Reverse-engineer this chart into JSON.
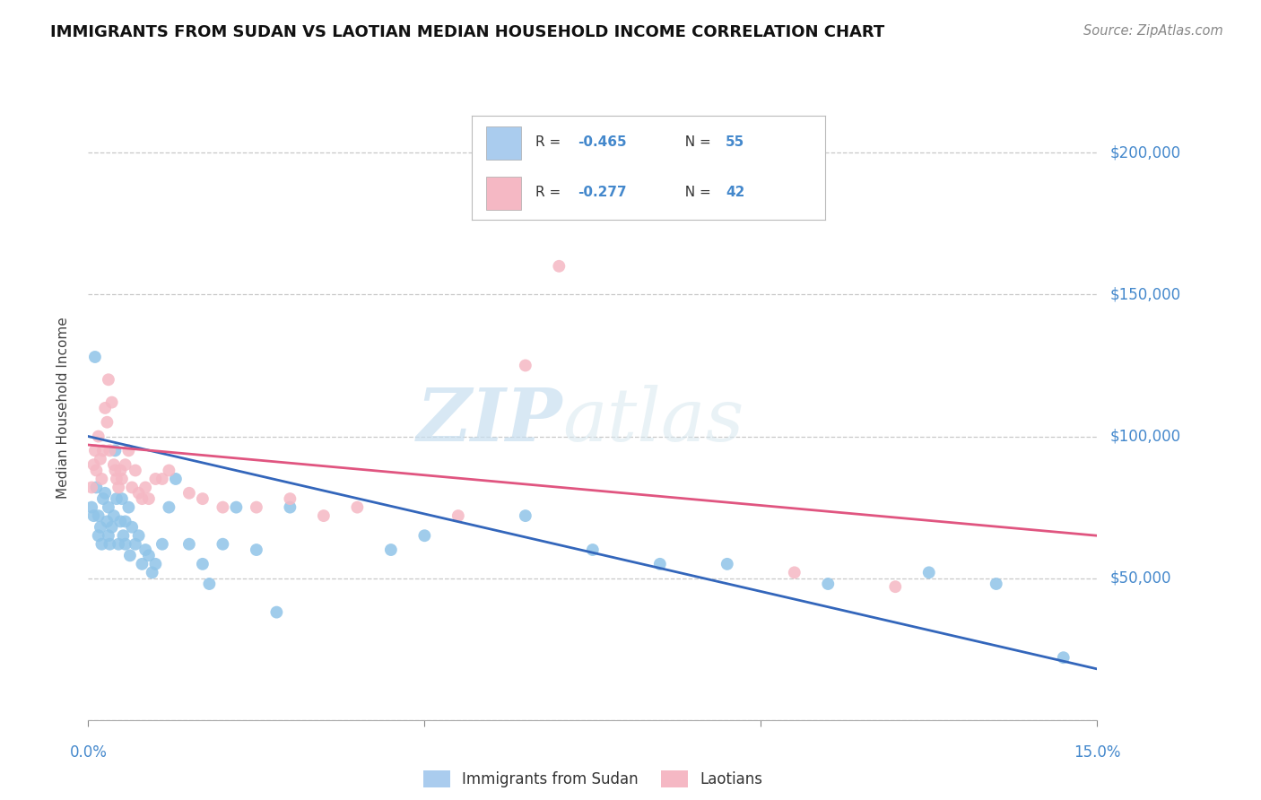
{
  "title": "IMMIGRANTS FROM SUDAN VS LAOTIAN MEDIAN HOUSEHOLD INCOME CORRELATION CHART",
  "source": "Source: ZipAtlas.com",
  "ylabel": "Median Household Income",
  "xlim": [
    0.0,
    15.0
  ],
  "ylim": [
    0,
    220000
  ],
  "yticks": [
    0,
    50000,
    100000,
    150000,
    200000
  ],
  "ytick_labels": [
    "",
    "$50,000",
    "$100,000",
    "$150,000",
    "$200,000"
  ],
  "background_color": "#ffffff",
  "grid_color": "#c8c8c8",
  "watermark_text": "ZIPatlas",
  "sudan_dot_color": "#90c4e8",
  "laotian_dot_color": "#f5b8c4",
  "sudan_line_color": "#3366bb",
  "laotian_line_color": "#e05580",
  "sudan_legend_color": "#aaccee",
  "laotian_legend_color": "#f5b8c4",
  "sudan_R": -0.465,
  "sudan_N": 55,
  "laotian_R": -0.277,
  "laotian_N": 42,
  "sudan_points_x": [
    0.05,
    0.08,
    0.1,
    0.12,
    0.15,
    0.15,
    0.18,
    0.2,
    0.22,
    0.25,
    0.28,
    0.3,
    0.3,
    0.32,
    0.35,
    0.38,
    0.4,
    0.42,
    0.45,
    0.48,
    0.5,
    0.52,
    0.55,
    0.55,
    0.6,
    0.62,
    0.65,
    0.7,
    0.75,
    0.8,
    0.85,
    0.9,
    0.95,
    1.0,
    1.1,
    1.2,
    1.3,
    1.5,
    1.7,
    2.0,
    2.2,
    2.5,
    3.0,
    4.5,
    5.0,
    6.5,
    7.5,
    8.5,
    9.5,
    11.0,
    12.5,
    13.5,
    14.5,
    1.8,
    2.8
  ],
  "sudan_points_y": [
    75000,
    72000,
    128000,
    82000,
    72000,
    65000,
    68000,
    62000,
    78000,
    80000,
    70000,
    75000,
    65000,
    62000,
    68000,
    72000,
    95000,
    78000,
    62000,
    70000,
    78000,
    65000,
    62000,
    70000,
    75000,
    58000,
    68000,
    62000,
    65000,
    55000,
    60000,
    58000,
    52000,
    55000,
    62000,
    75000,
    85000,
    62000,
    55000,
    62000,
    75000,
    60000,
    75000,
    60000,
    65000,
    72000,
    60000,
    55000,
    55000,
    48000,
    52000,
    48000,
    22000,
    48000,
    38000
  ],
  "laotian_points_x": [
    0.05,
    0.08,
    0.1,
    0.12,
    0.15,
    0.18,
    0.2,
    0.22,
    0.25,
    0.28,
    0.3,
    0.32,
    0.35,
    0.38,
    0.4,
    0.42,
    0.45,
    0.48,
    0.5,
    0.55,
    0.6,
    0.65,
    0.7,
    0.75,
    0.8,
    0.85,
    0.9,
    1.0,
    1.1,
    1.2,
    1.5,
    1.7,
    2.0,
    2.5,
    3.0,
    3.5,
    4.0,
    5.5,
    6.5,
    7.0,
    10.5,
    12.0
  ],
  "laotian_points_y": [
    82000,
    90000,
    95000,
    88000,
    100000,
    92000,
    85000,
    95000,
    110000,
    105000,
    120000,
    95000,
    112000,
    90000,
    88000,
    85000,
    82000,
    88000,
    85000,
    90000,
    95000,
    82000,
    88000,
    80000,
    78000,
    82000,
    78000,
    85000,
    85000,
    88000,
    80000,
    78000,
    75000,
    75000,
    78000,
    72000,
    75000,
    72000,
    125000,
    160000,
    52000,
    47000
  ],
  "sudan_trend_x0": 0.0,
  "sudan_trend_y0": 100000,
  "sudan_trend_x1": 15.0,
  "sudan_trend_y1": 18000,
  "laotian_trend_x0": 0.0,
  "laotian_trend_y0": 97000,
  "laotian_trend_x1": 15.0,
  "laotian_trend_y1": 65000
}
